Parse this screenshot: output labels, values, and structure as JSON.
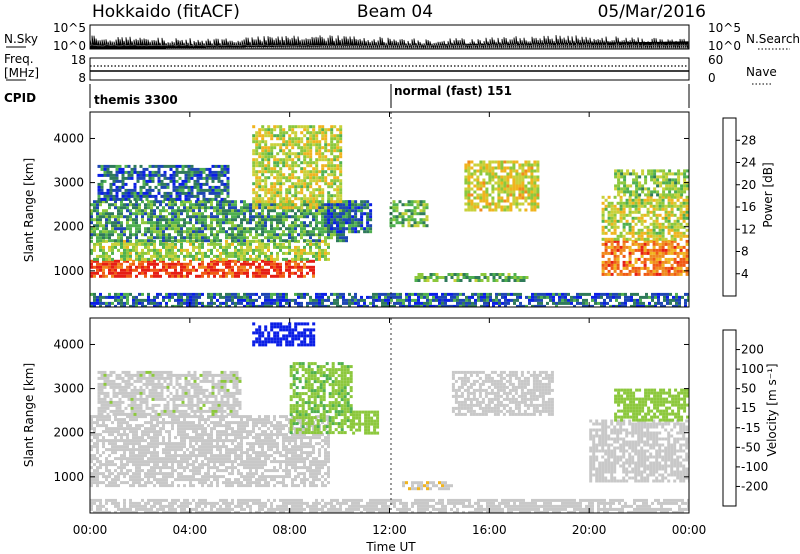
{
  "header": {
    "station": "Hokkaido (fitACF)",
    "beam": "Beam 04",
    "date": "05/Mar/2016"
  },
  "noise_panel": {
    "left_label": "N.Sky",
    "right_label": "N.Search",
    "left_ticks": [
      "10^5",
      "10^0"
    ],
    "right_ticks": [
      "10^5",
      "10^0"
    ]
  },
  "freq_panel": {
    "left_label_1": "Freq.",
    "left_label_2": "[MHz]",
    "right_label": "Nave",
    "left_ticks": [
      "18",
      "8"
    ],
    "right_ticks": [
      "60",
      "0"
    ]
  },
  "cpid": {
    "label": "CPID",
    "segments": [
      {
        "name": "themis 3300",
        "start_hour": 0,
        "end_hour": 12
      },
      {
        "name": "normal (fast) 151",
        "start_hour": 12,
        "end_hour": 24
      }
    ]
  },
  "colors": {
    "power_scale": [
      "#0a1ee6",
      "#1e46b4",
      "#2f7a5a",
      "#4fb04f",
      "#8cc83c",
      "#c9d13a",
      "#f0b41e",
      "#f08a1e",
      "#f05a14",
      "#e61e14"
    ],
    "velocity_scale": [
      "#e61e14",
      "#f05a14",
      "#f08a1e",
      "#f0b41e",
      "#c8c8c8",
      "#c8c8c8",
      "#8cc83c",
      "#4fb04f",
      "#2f7a5a",
      "#1e3cb4",
      "#0a1ee6"
    ]
  },
  "chart_data": [
    {
      "type": "heatmap",
      "name": "power",
      "ylabel": "Slant Range [km]",
      "colorbar_label": "Power [dB]",
      "colorbar_ticks": [
        "28",
        "24",
        "20",
        "16",
        "12",
        "8",
        "4"
      ],
      "colorbar_range": [
        0,
        32
      ],
      "ylim": [
        180,
        4600
      ],
      "yticks": [
        "4000",
        "3000",
        "2000",
        "1000"
      ],
      "ytick_values": [
        4000,
        3000,
        2000,
        1000
      ],
      "xlim": [
        0,
        24
      ],
      "echo_bands": [
        {
          "t0": 0.0,
          "t1": 9.0,
          "r0": 900,
          "r1": 1250,
          "power": 29
        },
        {
          "t0": 0.0,
          "t1": 9.5,
          "r0": 1250,
          "r1": 1700,
          "power": 15
        },
        {
          "t0": 0.0,
          "t1": 10.5,
          "r0": 1700,
          "r1": 2600,
          "power": 10
        },
        {
          "t0": 0.3,
          "t1": 5.5,
          "r0": 2600,
          "r1": 3400,
          "power": 6
        },
        {
          "t0": 6.5,
          "t1": 10.0,
          "r0": 2400,
          "r1": 4300,
          "power": 17
        },
        {
          "t0": 9.5,
          "t1": 11.2,
          "r0": 1900,
          "r1": 2600,
          "power": 6
        },
        {
          "t0": 12.0,
          "t1": 13.5,
          "r0": 2000,
          "r1": 2600,
          "power": 13
        },
        {
          "t0": 13.0,
          "t1": 17.5,
          "r0": 750,
          "r1": 950,
          "power": 12
        },
        {
          "t0": 15.0,
          "t1": 18.0,
          "r0": 2400,
          "r1": 3500,
          "power": 18
        },
        {
          "t0": 20.5,
          "t1": 24.0,
          "r0": 900,
          "r1": 1700,
          "power": 25
        },
        {
          "t0": 20.5,
          "t1": 24.0,
          "r0": 1700,
          "r1": 2700,
          "power": 17
        },
        {
          "t0": 21.0,
          "t1": 24.0,
          "r0": 2700,
          "r1": 3300,
          "power": 14
        },
        {
          "t0": 0.0,
          "t1": 24.0,
          "r0": 180,
          "r1": 500,
          "power": 6
        }
      ]
    },
    {
      "type": "heatmap",
      "name": "velocity",
      "ylabel": "Slant Range [km]",
      "xlabel": "Time UT",
      "colorbar_label": "Velocity [m s⁻¹]",
      "colorbar_ticks": [
        "200",
        "100",
        "50",
        "15",
        "-15",
        "-50",
        "-100",
        "-200"
      ],
      "colorbar_range": [
        -250,
        250
      ],
      "ylim": [
        180,
        4600
      ],
      "yticks": [
        "4000",
        "3000",
        "2000",
        "1000"
      ],
      "ytick_values": [
        4000,
        3000,
        2000,
        1000
      ],
      "xlim": [
        0,
        24
      ],
      "xticks": [
        "00:00",
        "04:00",
        "08:00",
        "12:00",
        "16:00",
        "20:00",
        "00:00"
      ],
      "xtick_hours": [
        0,
        4,
        8,
        12,
        16,
        20,
        24
      ],
      "echo_bands": [
        {
          "t0": 0.0,
          "t1": 9.5,
          "r0": 800,
          "r1": 2400,
          "velocity": 0
        },
        {
          "t0": 0.3,
          "t1": 6.0,
          "r0": 2400,
          "r1": 3400,
          "velocity": 10
        },
        {
          "t0": 6.5,
          "t1": 9.0,
          "r0": 4000,
          "r1": 4500,
          "velocity": 220
        },
        {
          "t0": 8.0,
          "t1": 10.5,
          "r0": 2000,
          "r1": 3600,
          "velocity": 60
        },
        {
          "t0": 10.5,
          "t1": 11.5,
          "r0": 2000,
          "r1": 2500,
          "velocity": 40
        },
        {
          "t0": 12.5,
          "t1": 14.5,
          "r0": 750,
          "r1": 900,
          "velocity": -60
        },
        {
          "t0": 14.5,
          "t1": 18.5,
          "r0": 2400,
          "r1": 3400,
          "velocity": 0
        },
        {
          "t0": 20.0,
          "t1": 24.0,
          "r0": 900,
          "r1": 2300,
          "velocity": 5
        },
        {
          "t0": 21.0,
          "t1": 24.0,
          "r0": 2300,
          "r1": 3000,
          "velocity": 40
        },
        {
          "t0": 0.0,
          "t1": 24.0,
          "r0": 180,
          "r1": 500,
          "velocity": -30
        }
      ]
    }
  ]
}
